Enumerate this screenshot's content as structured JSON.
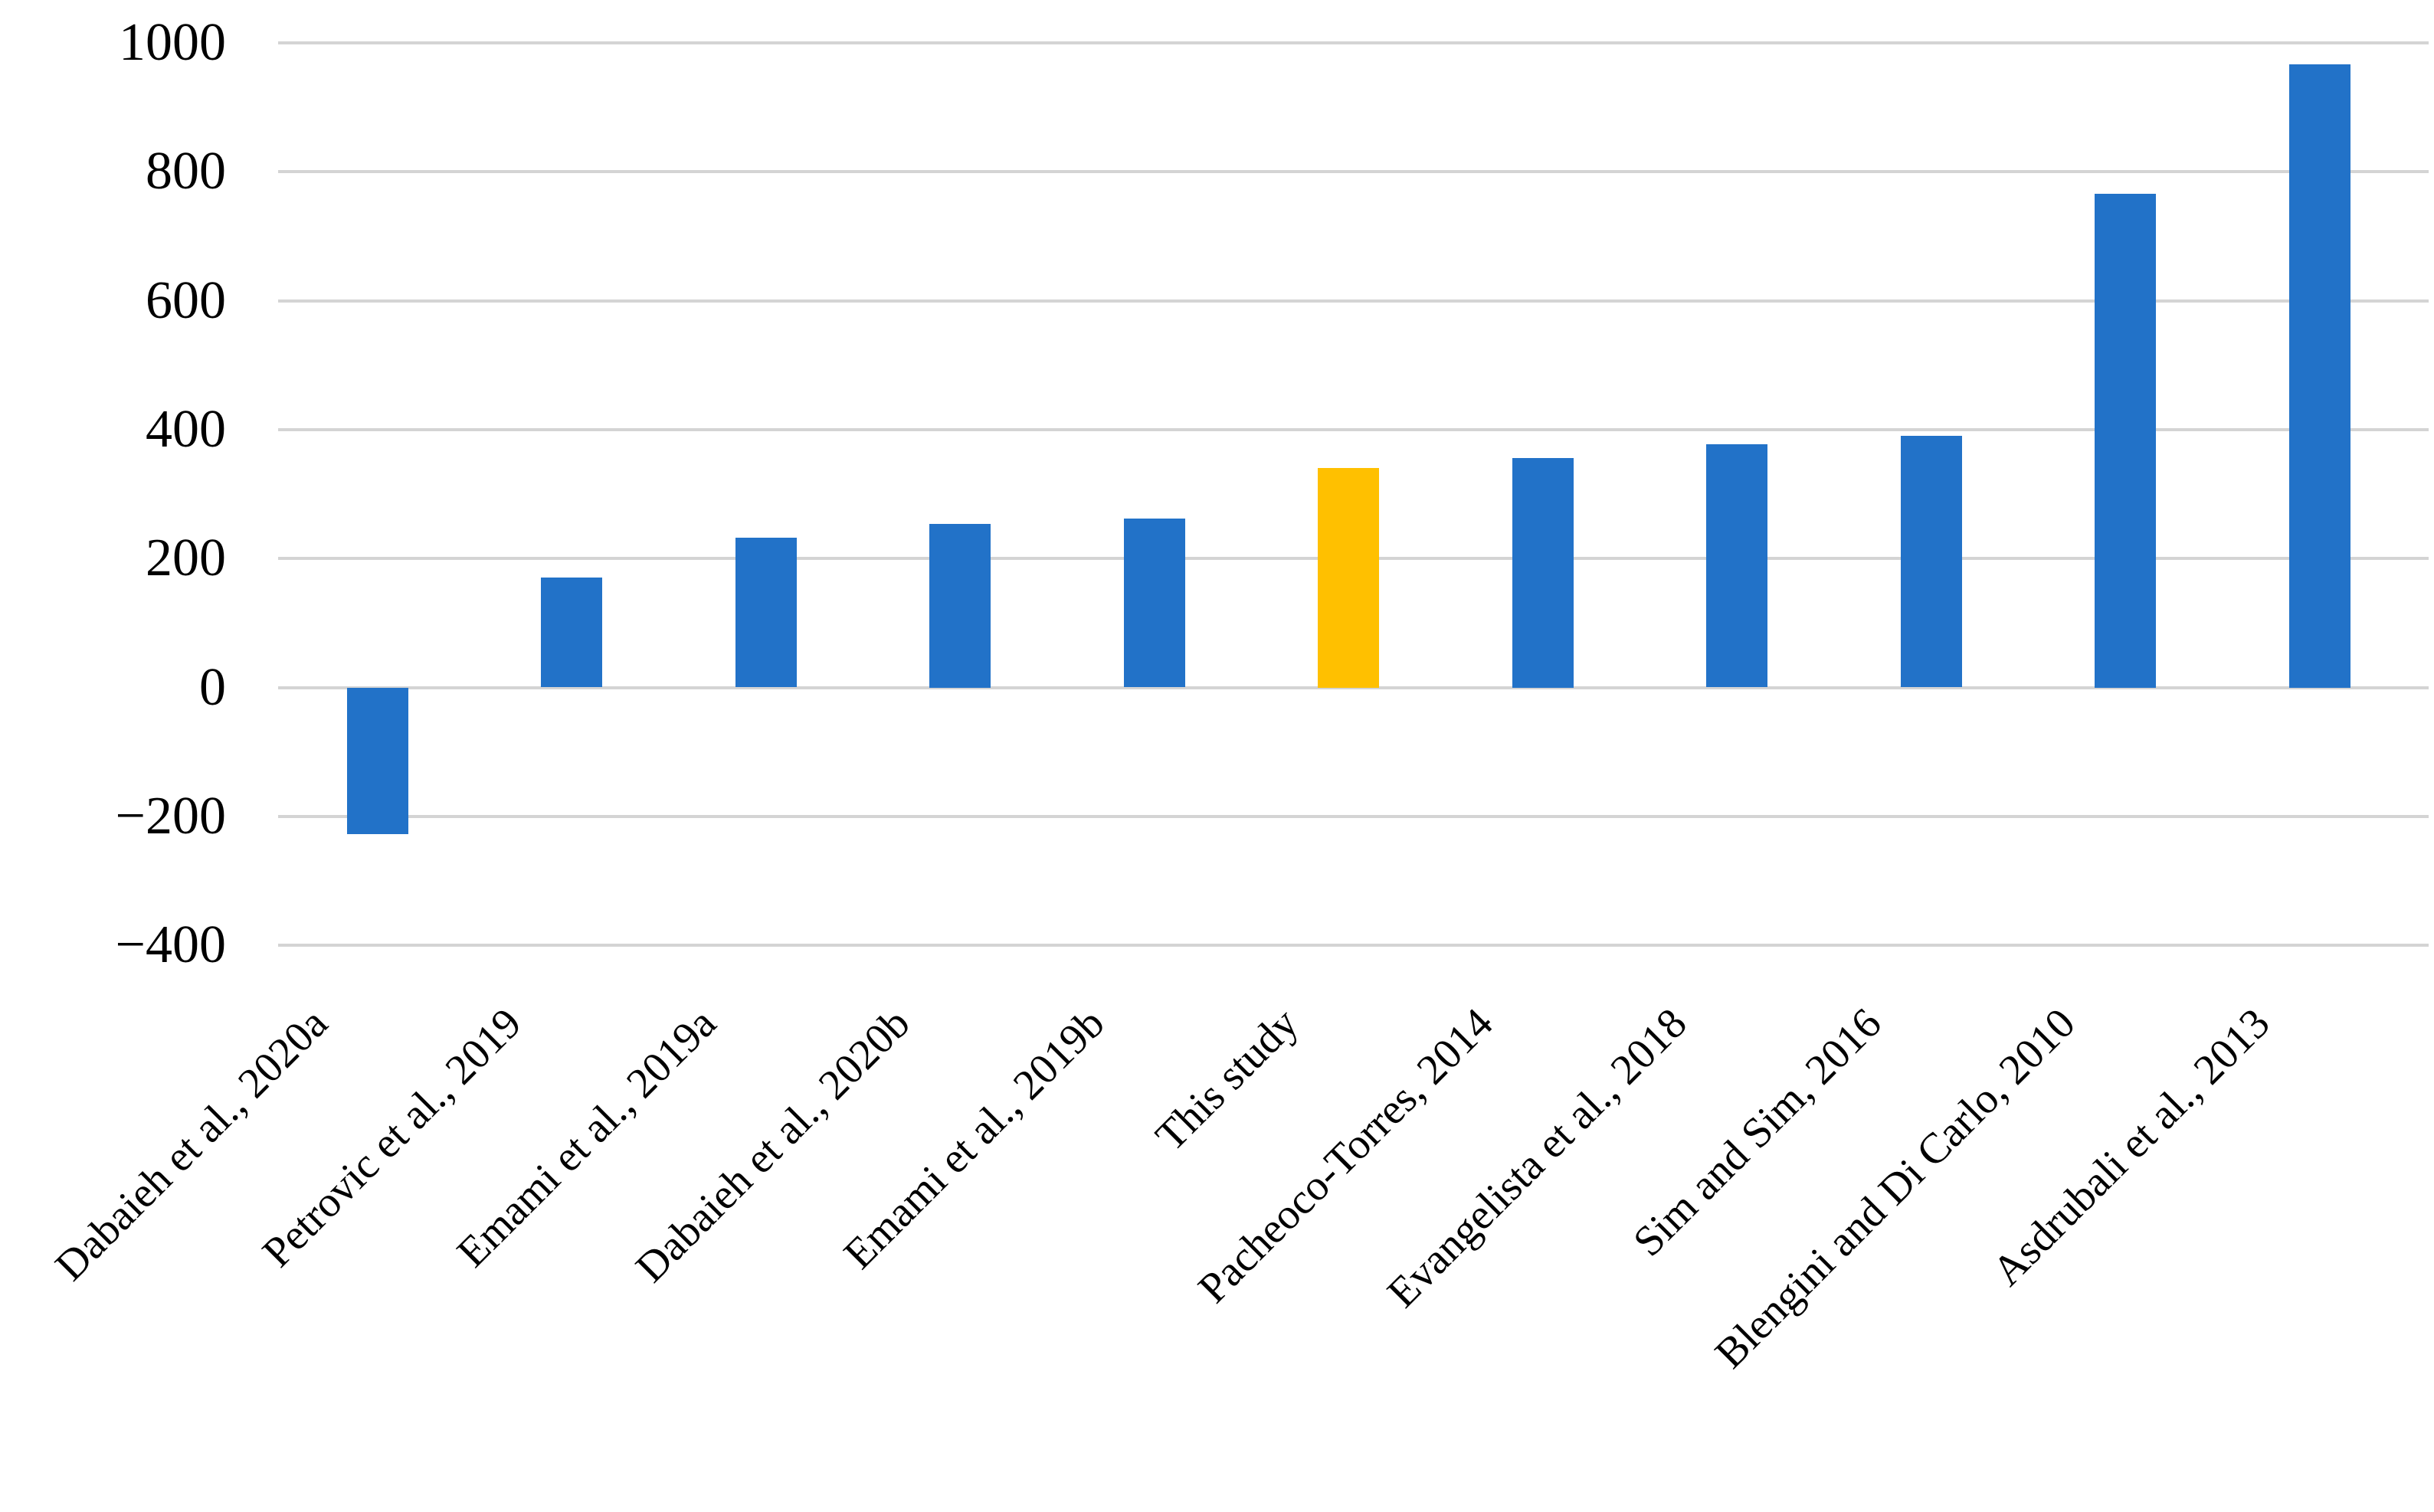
{
  "chart_data": {
    "type": "bar",
    "title": "",
    "xlabel": "",
    "ylabel": "",
    "categories": [
      "Dabaieh et al., 2020a",
      "Petrovic et al., 2019",
      "Emami et al., 2019a",
      "Dabaieh et al., 2020b",
      "Emami et al., 2019b",
      "This study",
      "Pacheoco-Torres, 2014",
      "Evangelista et al., 2018",
      "Sim and Sim, 2016",
      "Blengini and Di Carlo, 2010",
      "Asdrubali et al., 2013"
    ],
    "values": [
      -227,
      170,
      232,
      254,
      262,
      341,
      356,
      377,
      390,
      766,
      967
    ],
    "highlight_index": 5,
    "highlight_category": "This study",
    "ylim": [
      -400,
      1000
    ],
    "ytick_step": 200,
    "yticks": [
      1000,
      800,
      600,
      400,
      200,
      0,
      -200,
      -400
    ],
    "ytick_labels": [
      "1000",
      "800",
      "600",
      "400",
      "200",
      "0",
      "−200",
      "−400"
    ],
    "grid": "horizontal-only",
    "legend": "none",
    "colors": {
      "bar_default": "#2272C8",
      "bar_highlight": "#FFC000",
      "gridline": "#D4D4D4",
      "text": "#000000",
      "background": "#FFFFFF"
    }
  }
}
